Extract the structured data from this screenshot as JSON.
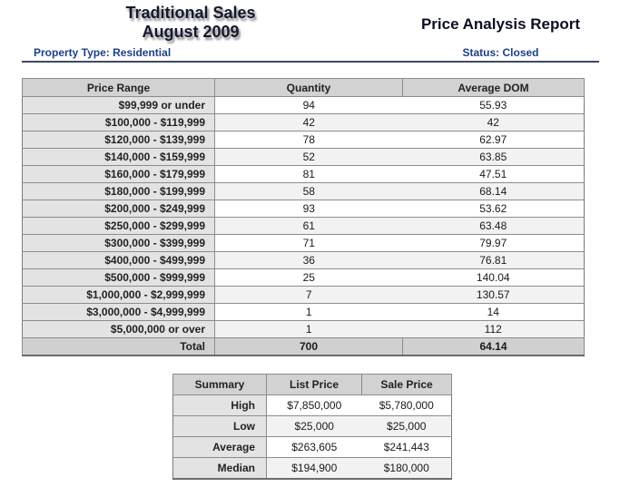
{
  "header": {
    "title_line1": "Traditional Sales",
    "title_line2": "August 2009",
    "report_title": "Price Analysis Report",
    "property_type": "Property Type: Residential",
    "status": "Status: Closed"
  },
  "main_table": {
    "columns": [
      "Price Range",
      "Quantity",
      "Average DOM"
    ],
    "rows": [
      {
        "price_range": "$99,999 or under",
        "quantity": "94",
        "average_dom": "55.93"
      },
      {
        "price_range": "$100,000 - $119,999",
        "quantity": "42",
        "average_dom": "42"
      },
      {
        "price_range": "$120,000 - $139,999",
        "quantity": "78",
        "average_dom": "62.97"
      },
      {
        "price_range": "$140,000 - $159,999",
        "quantity": "52",
        "average_dom": "63.85"
      },
      {
        "price_range": "$160,000 - $179,999",
        "quantity": "81",
        "average_dom": "47.51"
      },
      {
        "price_range": "$180,000 - $199,999",
        "quantity": "58",
        "average_dom": "68.14"
      },
      {
        "price_range": "$200,000 - $249,999",
        "quantity": "93",
        "average_dom": "53.62"
      },
      {
        "price_range": "$250,000 - $299,999",
        "quantity": "61",
        "average_dom": "63.48"
      },
      {
        "price_range": "$300,000 - $399,999",
        "quantity": "71",
        "average_dom": "79.97"
      },
      {
        "price_range": "$400,000 - $499,999",
        "quantity": "36",
        "average_dom": "76.81"
      },
      {
        "price_range": "$500,000 - $999,999",
        "quantity": "25",
        "average_dom": "140.04"
      },
      {
        "price_range": "$1,000,000 - $2,999,999",
        "quantity": "7",
        "average_dom": "130.57"
      },
      {
        "price_range": "$3,000,000 - $4,999,999",
        "quantity": "1",
        "average_dom": "14"
      },
      {
        "price_range": "$5,000,000 or over",
        "quantity": "1",
        "average_dom": "112"
      }
    ],
    "total": {
      "label": "Total",
      "quantity": "700",
      "average_dom": "64.14"
    }
  },
  "summary_table": {
    "columns": [
      "Summary",
      "List Price",
      "Sale Price"
    ],
    "rows": [
      {
        "label": "High",
        "list_price": "$7,850,000",
        "sale_price": "$5,780,000"
      },
      {
        "label": "Low",
        "list_price": "$25,000",
        "sale_price": "$25,000"
      },
      {
        "label": "Average",
        "list_price": "$263,605",
        "sale_price": "$241,443"
      },
      {
        "label": "Median",
        "list_price": "$194,900",
        "sale_price": "$180,000"
      }
    ]
  },
  "colors": {
    "accent_navy": "#1d4088",
    "header_row_bg": "#d2d2d2",
    "label_column_bg": "#e3e3e3",
    "alt_row_bg": "#f2f2f2",
    "border_gray": "#8c8c8c",
    "rule_navy": "#3e4965"
  }
}
